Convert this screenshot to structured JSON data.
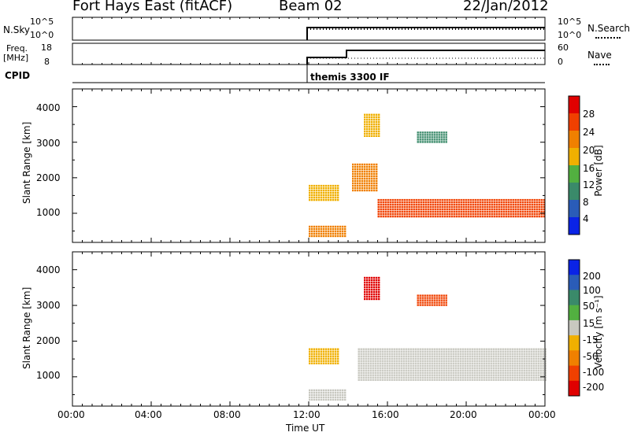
{
  "header": {
    "station": "Fort Hays East (fitACF)",
    "beam": "Beam 02",
    "date": "22/Jan/2012"
  },
  "panels": {
    "nsky": {
      "label": "N.Sky",
      "left_ticks": [
        "10^5",
        "10^0"
      ],
      "right_ticks": [
        "10^5",
        "10^0"
      ],
      "right_label": "N.Search"
    },
    "freq": {
      "label_line1": "Freq.",
      "label_line2": "[MHz]",
      "left_ticks": [
        "18",
        "8"
      ],
      "right_ticks": [
        "60",
        "0"
      ],
      "right_label": "Nave"
    },
    "cpid": {
      "label": "CPID",
      "mode": "themis 3300 IF"
    }
  },
  "colors": {
    "power": [
      "#0a23e6",
      "#2a5cb8",
      "#3a8a6a",
      "#52b040",
      "#f0b000",
      "#f08000",
      "#f04000",
      "#e00000"
    ],
    "velocity": [
      "#e00000",
      "#f04000",
      "#f08000",
      "#f0b000",
      "#c8c8c0",
      "#52b040",
      "#3a8a6a",
      "#2a5cb8",
      "#0a23e6"
    ]
  },
  "chart_data": [
    {
      "type": "heatmap",
      "title": "Fort Hays East (fitACF) Beam 02 22/Jan/2012",
      "ylabel": "Slant Range [km]",
      "xlabel": "Time UT",
      "ylim": [
        180,
        4500
      ],
      "yticks": [
        "1000",
        "2000",
        "3000",
        "4000"
      ],
      "colorbar": {
        "label": "Power [dB]",
        "ticks": [
          "28",
          "24",
          "20",
          "16",
          "12",
          "8",
          "4"
        ],
        "range": [
          0,
          30
        ]
      },
      "series": [
        {
          "name": "Power",
          "data": [
            {
              "t": [
                12.0,
                13.9
              ],
              "r": [
                350,
                650
              ],
              "v": 22
            },
            {
              "t": [
                12.0,
                13.5
              ],
              "r": [
                1350,
                1800
              ],
              "v": 16
            },
            {
              "t": [
                14.2,
                15.5
              ],
              "r": [
                1650,
                2400
              ],
              "v": 20
            },
            {
              "t": [
                15.5,
                24.0
              ],
              "r": [
                900,
                1400
              ],
              "v": 26
            },
            {
              "t": [
                14.8,
                15.6
              ],
              "r": [
                3200,
                3800
              ],
              "v": 16
            },
            {
              "t": [
                17.5,
                19.0
              ],
              "r": [
                3000,
                3300
              ],
              "v": 8
            }
          ]
        }
      ]
    },
    {
      "type": "heatmap",
      "title": "Fort Hays East (fitACF) Beam 02 22/Jan/2012",
      "ylabel": "Slant Range [km]",
      "xlabel": "Time UT",
      "ylim": [
        180,
        4500
      ],
      "yticks": [
        "1000",
        "2000",
        "3000",
        "4000"
      ],
      "xticks": [
        "00:00",
        "04:00",
        "08:00",
        "12:00",
        "16:00",
        "20:00",
        "00:00"
      ],
      "colorbar": {
        "label": "Velocity [m s⁻¹]",
        "ticks": [
          "200",
          "100",
          "50",
          "15",
          "-15",
          "-50",
          "-100",
          "-200"
        ],
        "range": [
          -250,
          250
        ]
      },
      "series": [
        {
          "name": "Velocity",
          "data": [
            {
              "t": [
                12.0,
                13.5
              ],
              "r": [
                1350,
                1800
              ],
              "v": -75
            },
            {
              "t": [
                12.0,
                13.9
              ],
              "r": [
                350,
                650
              ],
              "v": 0
            },
            {
              "t": [
                14.5,
                24.0
              ],
              "r": [
                900,
                1800
              ],
              "v": 0
            },
            {
              "t": [
                14.8,
                15.6
              ],
              "r": [
                3200,
                3800
              ],
              "v": -200
            },
            {
              "t": [
                17.5,
                19.0
              ],
              "r": [
                3000,
                3300
              ],
              "v": -150
            }
          ]
        }
      ]
    }
  ]
}
